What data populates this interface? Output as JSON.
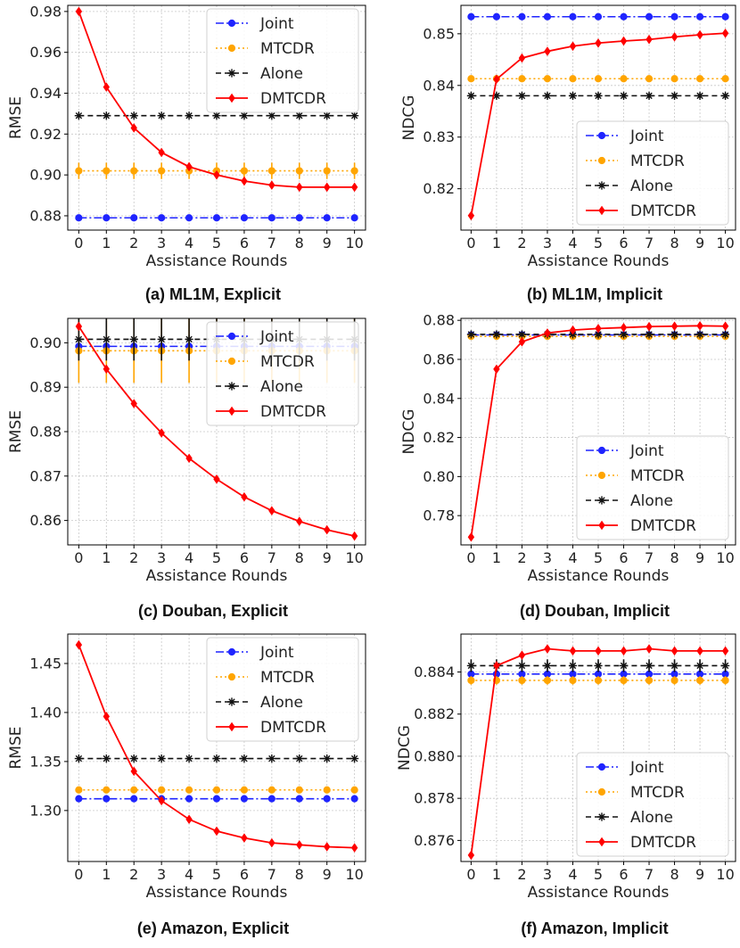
{
  "legend_labels": [
    "Joint",
    "MTCDR",
    "Alone",
    "DMTCDR"
  ],
  "colors": {
    "joint": "#1f24ff",
    "mtcdr": "#ffa500",
    "alone": "#111111",
    "dmtcdr": "#ff0000",
    "grid": "#c8c8c8",
    "axes": "#000000"
  },
  "chart_data": [
    {
      "type": "line",
      "title": "(a) ML1M, Explicit",
      "xlabel": "Assistance Rounds",
      "ylabel": "RMSE",
      "x": [
        0,
        1,
        2,
        3,
        4,
        5,
        6,
        7,
        8,
        9,
        10
      ],
      "xlim": [
        -0.4,
        10.4
      ],
      "ylim": [
        0.873,
        0.983
      ],
      "yticks": [
        0.88,
        0.9,
        0.92,
        0.94,
        0.96,
        0.98
      ],
      "yticklabels": [
        "0.88",
        "0.90",
        "0.92",
        "0.94",
        "0.96",
        "0.98"
      ],
      "legend_position": "top-right",
      "grid": true,
      "series": [
        {
          "name": "Joint",
          "values": [
            0.879,
            0.879,
            0.879,
            0.879,
            0.879,
            0.879,
            0.879,
            0.879,
            0.879,
            0.879,
            0.879
          ],
          "error": 0
        },
        {
          "name": "MTCDR",
          "values": [
            0.902,
            0.902,
            0.902,
            0.902,
            0.902,
            0.902,
            0.902,
            0.902,
            0.902,
            0.902,
            0.902
          ],
          "error": 0.004
        },
        {
          "name": "Alone",
          "values": [
            0.929,
            0.929,
            0.929,
            0.929,
            0.929,
            0.929,
            0.929,
            0.929,
            0.929,
            0.929,
            0.929
          ],
          "error": 0
        },
        {
          "name": "DMTCDR",
          "values": [
            0.98,
            0.943,
            0.923,
            0.911,
            0.904,
            0.9,
            0.897,
            0.895,
            0.894,
            0.894,
            0.894
          ],
          "error": 0.0008
        }
      ]
    },
    {
      "type": "line",
      "title": "(b) ML1M, Implicit",
      "xlabel": "Assistance Rounds",
      "ylabel": "NDCG",
      "x": [
        0,
        1,
        2,
        3,
        4,
        5,
        6,
        7,
        8,
        9,
        10
      ],
      "xlim": [
        -0.4,
        10.4
      ],
      "ylim": [
        0.812,
        0.8555
      ],
      "yticks": [
        0.82,
        0.83,
        0.84,
        0.85
      ],
      "yticklabels": [
        "0.82",
        "0.83",
        "0.84",
        "0.85"
      ],
      "legend_position": "bottom-right",
      "grid": true,
      "series": [
        {
          "name": "Joint",
          "values": [
            0.8533,
            0.8533,
            0.8533,
            0.8533,
            0.8533,
            0.8533,
            0.8533,
            0.8533,
            0.8533,
            0.8533,
            0.8533
          ],
          "error": 0
        },
        {
          "name": "MTCDR",
          "values": [
            0.8413,
            0.8413,
            0.8413,
            0.8413,
            0.8413,
            0.8413,
            0.8413,
            0.8413,
            0.8413,
            0.8413,
            0.8413
          ],
          "error": 0
        },
        {
          "name": "Alone",
          "values": [
            0.838,
            0.838,
            0.838,
            0.838,
            0.838,
            0.838,
            0.838,
            0.838,
            0.838,
            0.838,
            0.838
          ],
          "error": 0.0005
        },
        {
          "name": "DMTCDR",
          "values": [
            0.8148,
            0.8412,
            0.8453,
            0.8466,
            0.8476,
            0.8482,
            0.8486,
            0.8489,
            0.8494,
            0.8498,
            0.8501
          ],
          "error": 0.0004
        }
      ]
    },
    {
      "type": "line",
      "title": "(c) Douban, Explicit",
      "xlabel": "Assistance Rounds",
      "ylabel": "RMSE",
      "x": [
        0,
        1,
        2,
        3,
        4,
        5,
        6,
        7,
        8,
        9,
        10
      ],
      "xlim": [
        -0.4,
        10.4
      ],
      "ylim": [
        0.8545,
        0.9055
      ],
      "yticks": [
        0.86,
        0.87,
        0.88,
        0.89,
        0.9
      ],
      "yticklabels": [
        "0.86",
        "0.87",
        "0.88",
        "0.89",
        "0.90"
      ],
      "legend_position": "top-right",
      "grid": true,
      "series": [
        {
          "name": "Joint",
          "values": [
            0.8992,
            0.8992,
            0.8992,
            0.8992,
            0.8992,
            0.8992,
            0.8992,
            0.8992,
            0.8992,
            0.8992,
            0.8992
          ],
          "error": 0
        },
        {
          "name": "MTCDR",
          "values": [
            0.8982,
            0.8982,
            0.8982,
            0.8982,
            0.8982,
            0.8982,
            0.8982,
            0.8982,
            0.8982,
            0.8982,
            0.8982
          ],
          "error": 0.0072
        },
        {
          "name": "Alone",
          "values": [
            0.9008,
            0.9008,
            0.9008,
            0.9008,
            0.9008,
            0.9008,
            0.9008,
            0.9008,
            0.9008,
            0.9008,
            0.9008
          ],
          "error": 0.0048
        },
        {
          "name": "DMTCDR",
          "values": [
            0.9037,
            0.8941,
            0.8863,
            0.8797,
            0.874,
            0.8693,
            0.8653,
            0.8622,
            0.8598,
            0.8579,
            0.8565
          ],
          "error": 0.0004
        }
      ]
    },
    {
      "type": "line",
      "title": "(d) Douban, Implicit",
      "xlabel": "Assistance Rounds",
      "ylabel": "NDCG",
      "x": [
        0,
        1,
        2,
        3,
        4,
        5,
        6,
        7,
        8,
        9,
        10
      ],
      "xlim": [
        -0.4,
        10.4
      ],
      "ylim": [
        0.765,
        0.881
      ],
      "yticks": [
        0.78,
        0.8,
        0.82,
        0.84,
        0.86,
        0.88
      ],
      "yticklabels": [
        "0.78",
        "0.80",
        "0.82",
        "0.84",
        "0.86",
        "0.88"
      ],
      "legend_position": "bottom-right",
      "grid": true,
      "series": [
        {
          "name": "Joint",
          "values": [
            0.8725,
            0.8725,
            0.8725,
            0.8725,
            0.8725,
            0.8725,
            0.8725,
            0.8725,
            0.8725,
            0.8725,
            0.8725
          ],
          "error": 0
        },
        {
          "name": "MTCDR",
          "values": [
            0.8718,
            0.8718,
            0.8718,
            0.8718,
            0.8718,
            0.8718,
            0.8718,
            0.8718,
            0.8718,
            0.8718,
            0.8718
          ],
          "error": 0.0008
        },
        {
          "name": "Alone",
          "values": [
            0.8728,
            0.8728,
            0.8728,
            0.8728,
            0.8728,
            0.8728,
            0.8728,
            0.8728,
            0.8728,
            0.8728,
            0.8728
          ],
          "error": 0.001
        },
        {
          "name": "DMTCDR",
          "values": [
            0.769,
            0.855,
            0.869,
            0.8735,
            0.875,
            0.8758,
            0.8763,
            0.8768,
            0.877,
            0.8772,
            0.877
          ],
          "error": 0.0012
        }
      ]
    },
    {
      "type": "line",
      "title": "(e) Amazon, Explicit",
      "xlabel": "Assistance Rounds",
      "ylabel": "RMSE",
      "x": [
        0,
        1,
        2,
        3,
        4,
        5,
        6,
        7,
        8,
        9,
        10
      ],
      "xlim": [
        -0.4,
        10.4
      ],
      "ylim": [
        1.248,
        1.48
      ],
      "yticks": [
        1.3,
        1.35,
        1.4,
        1.45
      ],
      "yticklabels": [
        "1.30",
        "1.35",
        "1.40",
        "1.45"
      ],
      "legend_position": "top-right",
      "grid": true,
      "series": [
        {
          "name": "Joint",
          "values": [
            1.312,
            1.312,
            1.312,
            1.312,
            1.312,
            1.312,
            1.312,
            1.312,
            1.312,
            1.312,
            1.312
          ],
          "error": 0
        },
        {
          "name": "MTCDR",
          "values": [
            1.321,
            1.321,
            1.321,
            1.321,
            1.321,
            1.321,
            1.321,
            1.321,
            1.321,
            1.321,
            1.321
          ],
          "error": 0.002
        },
        {
          "name": "Alone",
          "values": [
            1.353,
            1.353,
            1.353,
            1.353,
            1.353,
            1.353,
            1.353,
            1.353,
            1.353,
            1.353,
            1.353
          ],
          "error": 0
        },
        {
          "name": "DMTCDR",
          "values": [
            1.469,
            1.396,
            1.34,
            1.31,
            1.291,
            1.279,
            1.272,
            1.267,
            1.265,
            1.263,
            1.262
          ],
          "error": 0.002
        }
      ]
    },
    {
      "type": "line",
      "title": "(f) Amazon, Implicit",
      "xlabel": "Assistance Rounds",
      "ylabel": "NDCG",
      "x": [
        0,
        1,
        2,
        3,
        4,
        5,
        6,
        7,
        8,
        9,
        10
      ],
      "xlim": [
        -0.4,
        10.4
      ],
      "ylim": [
        0.875,
        0.8858
      ],
      "yticks": [
        0.876,
        0.878,
        0.88,
        0.882,
        0.884
      ],
      "yticklabels": [
        "0.876",
        "0.878",
        "0.880",
        "0.882",
        "0.884"
      ],
      "legend_position": "bottom-right",
      "grid": true,
      "series": [
        {
          "name": "Joint",
          "values": [
            0.8839,
            0.8839,
            0.8839,
            0.8839,
            0.8839,
            0.8839,
            0.8839,
            0.8839,
            0.8839,
            0.8839,
            0.8839
          ],
          "error": 0.0001
        },
        {
          "name": "MTCDR",
          "values": [
            0.8836,
            0.8836,
            0.8836,
            0.8836,
            0.8836,
            0.8836,
            0.8836,
            0.8836,
            0.8836,
            0.8836,
            0.8836
          ],
          "error": 0.0002
        },
        {
          "name": "Alone",
          "values": [
            0.8843,
            0.8843,
            0.8843,
            0.8843,
            0.8843,
            0.8843,
            0.8843,
            0.8843,
            0.8843,
            0.8843,
            0.8843
          ],
          "error": 0.0003
        },
        {
          "name": "DMTCDR",
          "values": [
            0.8753,
            0.8843,
            0.8848,
            0.8851,
            0.885,
            0.885,
            0.885,
            0.8851,
            0.885,
            0.885,
            0.885
          ],
          "error": 0.0001
        }
      ]
    }
  ]
}
